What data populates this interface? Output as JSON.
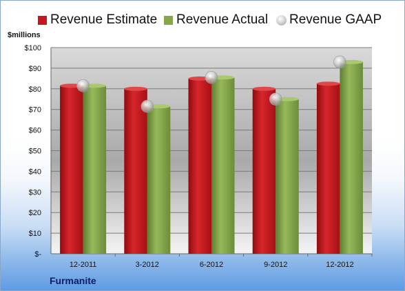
{
  "legend": {
    "estimate_label": "Revenue Estimate",
    "actual_label": "Revenue Actual",
    "gaap_label": "Revenue GAAP"
  },
  "company": "Furmanite",
  "colors": {
    "estimate": "#c8161d",
    "actual": "#86a84a",
    "gaap": "#c9c9c9"
  },
  "chart_data": {
    "type": "bar",
    "ylabel": "$millions",
    "ylim": [
      0,
      100
    ],
    "y_ticks": [
      "$-",
      "$10",
      "$20",
      "$30",
      "$40",
      "$50",
      "$60",
      "$70",
      "$80",
      "$90",
      "$100"
    ],
    "categories": [
      "12-2011",
      "3-2012",
      "6-2012",
      "9-2012",
      "12-2012"
    ],
    "series": [
      {
        "name": "Revenue Estimate",
        "type": "bar",
        "values": [
          81.5,
          80,
          85,
          80,
          82.5
        ]
      },
      {
        "name": "Revenue Actual",
        "type": "bar",
        "values": [
          81.5,
          71.5,
          85.5,
          75,
          93
        ]
      },
      {
        "name": "Revenue GAAP",
        "type": "scatter",
        "values": [
          81.5,
          71.5,
          85.5,
          75,
          93
        ]
      }
    ],
    "grid": true,
    "legend_position": "top"
  }
}
